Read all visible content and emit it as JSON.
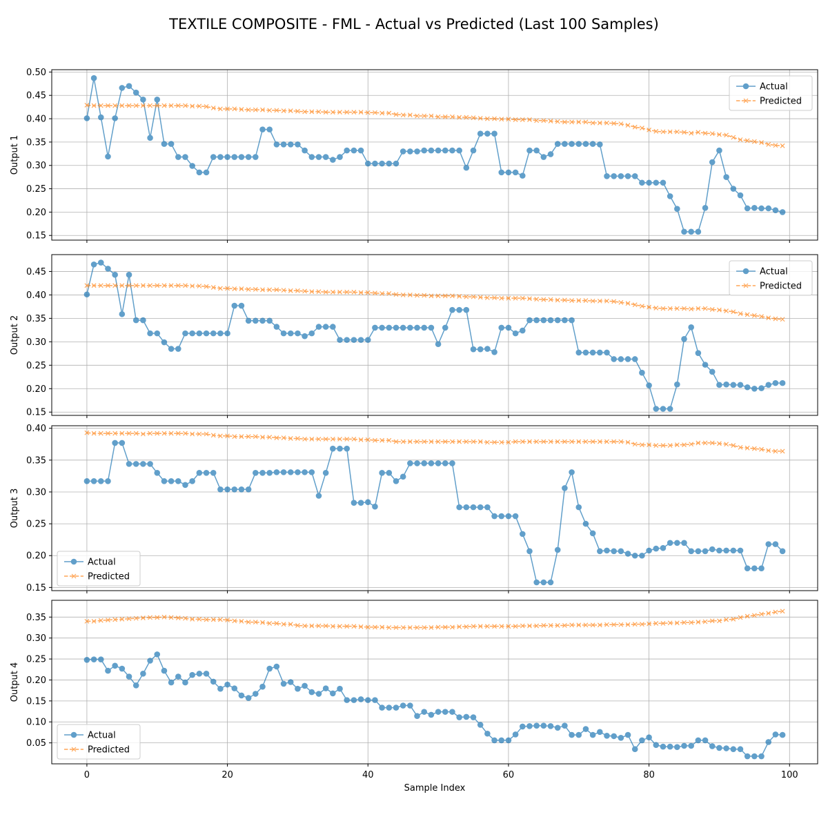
{
  "chart_data": {
    "type": "line",
    "title": "TEXTILE COMPOSITE - FML - Actual vs Predicted (Last 100 Samples)",
    "xlabel": "Sample Index",
    "x_ticks": [
      0,
      20,
      40,
      60,
      80,
      100
    ],
    "xlim": [
      -5,
      104
    ],
    "grid": true,
    "colors": {
      "actual": "#1f77b4",
      "predicted": "#ff7f0e"
    },
    "panels": [
      {
        "ylabel": "Output 1",
        "ylim": [
          0.14,
          0.505
        ],
        "y_ticks": [
          0.15,
          0.2,
          0.25,
          0.3,
          0.35,
          0.4,
          0.45,
          0.5
        ],
        "y_tick_labels": [
          "0.15",
          "0.20",
          "0.25",
          "0.30",
          "0.35",
          "0.40",
          "0.45",
          "0.50"
        ],
        "legend": "upper right",
        "series": [
          {
            "name": "Actual",
            "marker": "o",
            "values": [
              0.401,
              0.487,
              0.403,
              0.319,
              0.401,
              0.466,
              0.47,
              0.456,
              0.441,
              0.359,
              0.441,
              0.346,
              0.346,
              0.318,
              0.318,
              0.299,
              0.285,
              0.285,
              0.318,
              0.318,
              0.318,
              0.318,
              0.318,
              0.318,
              0.318,
              0.377,
              0.377,
              0.345,
              0.345,
              0.345,
              0.345,
              0.332,
              0.318,
              0.318,
              0.318,
              0.312,
              0.318,
              0.332,
              0.332,
              0.332,
              0.304,
              0.304,
              0.304,
              0.304,
              0.304,
              0.33,
              0.33,
              0.33,
              0.332,
              0.332,
              0.332,
              0.332,
              0.332,
              0.332,
              0.295,
              0.332,
              0.368,
              0.368,
              0.368,
              0.285,
              0.285,
              0.285,
              0.278,
              0.332,
              0.332,
              0.318,
              0.324,
              0.346,
              0.346,
              0.346,
              0.346,
              0.346,
              0.346,
              0.345,
              0.277,
              0.277,
              0.277,
              0.277,
              0.277,
              0.263,
              0.263,
              0.263,
              0.263,
              0.234,
              0.207,
              0.158,
              0.158,
              0.158,
              0.209,
              0.307,
              0.332,
              0.275,
              0.25,
              0.236,
              0.208,
              0.209,
              0.208,
              0.208,
              0.204,
              0.2
            ]
          },
          {
            "name": "Predicted",
            "marker": "x",
            "values": [
              0.429,
              0.428,
              0.428,
              0.428,
              0.428,
              0.428,
              0.428,
              0.428,
              0.428,
              0.428,
              0.428,
              0.428,
              0.428,
              0.428,
              0.428,
              0.427,
              0.427,
              0.426,
              0.423,
              0.421,
              0.421,
              0.421,
              0.42,
              0.419,
              0.419,
              0.419,
              0.418,
              0.418,
              0.417,
              0.417,
              0.416,
              0.415,
              0.415,
              0.415,
              0.414,
              0.414,
              0.414,
              0.414,
              0.414,
              0.414,
              0.413,
              0.413,
              0.412,
              0.412,
              0.409,
              0.408,
              0.408,
              0.406,
              0.406,
              0.406,
              0.404,
              0.404,
              0.404,
              0.403,
              0.403,
              0.402,
              0.401,
              0.4,
              0.4,
              0.399,
              0.399,
              0.398,
              0.398,
              0.398,
              0.396,
              0.396,
              0.395,
              0.394,
              0.393,
              0.393,
              0.393,
              0.393,
              0.391,
              0.391,
              0.391,
              0.39,
              0.389,
              0.386,
              0.382,
              0.38,
              0.376,
              0.373,
              0.372,
              0.372,
              0.372,
              0.371,
              0.369,
              0.371,
              0.369,
              0.368,
              0.366,
              0.365,
              0.36,
              0.355,
              0.353,
              0.351,
              0.349,
              0.345,
              0.343,
              0.342
            ]
          }
        ]
      },
      {
        "ylabel": "Output 2",
        "ylim": [
          0.143,
          0.486
        ],
        "y_ticks": [
          0.15,
          0.2,
          0.25,
          0.3,
          0.35,
          0.4,
          0.45
        ],
        "y_tick_labels": [
          "0.15",
          "0.20",
          "0.25",
          "0.30",
          "0.35",
          "0.40",
          "0.45"
        ],
        "legend": "upper right",
        "series": [
          {
            "name": "Actual",
            "marker": "o",
            "values": [
              0.401,
              0.465,
              0.469,
              0.456,
              0.443,
              0.359,
              0.443,
              0.346,
              0.346,
              0.318,
              0.318,
              0.299,
              0.285,
              0.285,
              0.318,
              0.318,
              0.318,
              0.318,
              0.318,
              0.318,
              0.318,
              0.377,
              0.377,
              0.345,
              0.345,
              0.345,
              0.345,
              0.332,
              0.318,
              0.318,
              0.318,
              0.312,
              0.318,
              0.332,
              0.332,
              0.332,
              0.304,
              0.304,
              0.304,
              0.304,
              0.304,
              0.33,
              0.33,
              0.33,
              0.33,
              0.33,
              0.33,
              0.33,
              0.33,
              0.33,
              0.295,
              0.33,
              0.368,
              0.368,
              0.368,
              0.284,
              0.284,
              0.285,
              0.278,
              0.33,
              0.33,
              0.318,
              0.324,
              0.346,
              0.346,
              0.346,
              0.346,
              0.346,
              0.346,
              0.346,
              0.277,
              0.277,
              0.277,
              0.277,
              0.277,
              0.263,
              0.263,
              0.263,
              0.263,
              0.234,
              0.207,
              0.157,
              0.157,
              0.157,
              0.209,
              0.306,
              0.331,
              0.276,
              0.251,
              0.236,
              0.208,
              0.209,
              0.208,
              0.208,
              0.203,
              0.2,
              0.201,
              0.208,
              0.212,
              0.212
            ]
          },
          {
            "name": "Predicted",
            "marker": "x",
            "values": [
              0.42,
              0.42,
              0.42,
              0.42,
              0.42,
              0.42,
              0.42,
              0.42,
              0.42,
              0.42,
              0.42,
              0.42,
              0.42,
              0.42,
              0.42,
              0.419,
              0.419,
              0.418,
              0.416,
              0.414,
              0.414,
              0.413,
              0.413,
              0.412,
              0.412,
              0.411,
              0.411,
              0.411,
              0.41,
              0.409,
              0.409,
              0.408,
              0.407,
              0.407,
              0.406,
              0.406,
              0.406,
              0.406,
              0.406,
              0.405,
              0.405,
              0.404,
              0.403,
              0.403,
              0.401,
              0.4,
              0.4,
              0.399,
              0.399,
              0.398,
              0.398,
              0.398,
              0.398,
              0.397,
              0.396,
              0.396,
              0.395,
              0.394,
              0.394,
              0.393,
              0.393,
              0.393,
              0.393,
              0.392,
              0.391,
              0.39,
              0.39,
              0.389,
              0.389,
              0.388,
              0.388,
              0.388,
              0.387,
              0.387,
              0.387,
              0.386,
              0.384,
              0.382,
              0.379,
              0.376,
              0.374,
              0.372,
              0.371,
              0.371,
              0.371,
              0.371,
              0.37,
              0.371,
              0.371,
              0.369,
              0.368,
              0.366,
              0.364,
              0.36,
              0.358,
              0.356,
              0.354,
              0.351,
              0.349,
              0.348
            ]
          }
        ]
      },
      {
        "ylabel": "Output 3",
        "ylim": [
          0.145,
          0.404
        ],
        "y_ticks": [
          0.15,
          0.2,
          0.25,
          0.3,
          0.35,
          0.4
        ],
        "y_tick_labels": [
          "0.15",
          "0.20",
          "0.25",
          "0.30",
          "0.35",
          "0.40"
        ],
        "legend": "lower left",
        "series": [
          {
            "name": "Actual",
            "marker": "o",
            "values": [
              0.317,
              0.317,
              0.317,
              0.317,
              0.377,
              0.377,
              0.344,
              0.344,
              0.344,
              0.344,
              0.33,
              0.317,
              0.317,
              0.317,
              0.311,
              0.317,
              0.33,
              0.33,
              0.33,
              0.304,
              0.304,
              0.304,
              0.304,
              0.304,
              0.33,
              0.33,
              0.33,
              0.331,
              0.331,
              0.331,
              0.331,
              0.331,
              0.331,
              0.294,
              0.33,
              0.368,
              0.368,
              0.368,
              0.283,
              0.283,
              0.284,
              0.277,
              0.33,
              0.33,
              0.317,
              0.324,
              0.345,
              0.345,
              0.345,
              0.345,
              0.345,
              0.345,
              0.345,
              0.276,
              0.276,
              0.276,
              0.276,
              0.276,
              0.262,
              0.262,
              0.262,
              0.262,
              0.234,
              0.207,
              0.158,
              0.158,
              0.158,
              0.209,
              0.306,
              0.331,
              0.276,
              0.25,
              0.235,
              0.207,
              0.208,
              0.207,
              0.207,
              0.203,
              0.2,
              0.2,
              0.208,
              0.211,
              0.212,
              0.22,
              0.22,
              0.22,
              0.207,
              0.207,
              0.207,
              0.21,
              0.208,
              0.208,
              0.208,
              0.208,
              0.18,
              0.18,
              0.18,
              0.218,
              0.218,
              0.207
            ]
          },
          {
            "name": "Predicted",
            "marker": "x",
            "values": [
              0.393,
              0.392,
              0.392,
              0.392,
              0.392,
              0.392,
              0.392,
              0.392,
              0.391,
              0.392,
              0.392,
              0.392,
              0.392,
              0.392,
              0.392,
              0.391,
              0.391,
              0.391,
              0.389,
              0.388,
              0.388,
              0.387,
              0.387,
              0.387,
              0.387,
              0.386,
              0.386,
              0.385,
              0.385,
              0.384,
              0.384,
              0.383,
              0.383,
              0.383,
              0.383,
              0.383,
              0.383,
              0.383,
              0.383,
              0.382,
              0.382,
              0.381,
              0.381,
              0.381,
              0.379,
              0.379,
              0.379,
              0.379,
              0.379,
              0.379,
              0.379,
              0.379,
              0.379,
              0.379,
              0.379,
              0.379,
              0.379,
              0.378,
              0.378,
              0.378,
              0.378,
              0.379,
              0.379,
              0.379,
              0.379,
              0.379,
              0.379,
              0.379,
              0.379,
              0.379,
              0.379,
              0.379,
              0.379,
              0.379,
              0.379,
              0.379,
              0.379,
              0.378,
              0.375,
              0.374,
              0.374,
              0.373,
              0.373,
              0.373,
              0.374,
              0.374,
              0.375,
              0.377,
              0.377,
              0.377,
              0.376,
              0.375,
              0.373,
              0.37,
              0.369,
              0.368,
              0.367,
              0.365,
              0.364,
              0.364
            ]
          }
        ]
      },
      {
        "ylabel": "Output 4",
        "ylim": [
          0.0,
          0.39
        ],
        "y_ticks": [
          0.05,
          0.1,
          0.15,
          0.2,
          0.25,
          0.3,
          0.35
        ],
        "y_tick_labels": [
          "0.05",
          "0.10",
          "0.15",
          "0.20",
          "0.25",
          "0.30",
          "0.35"
        ],
        "legend": "lower left",
        "series": [
          {
            "name": "Actual",
            "marker": "o",
            "values": [
              0.248,
              0.249,
              0.249,
              0.222,
              0.234,
              0.227,
              0.208,
              0.187,
              0.215,
              0.246,
              0.261,
              0.222,
              0.194,
              0.208,
              0.194,
              0.212,
              0.215,
              0.215,
              0.196,
              0.179,
              0.189,
              0.18,
              0.163,
              0.157,
              0.167,
              0.184,
              0.227,
              0.232,
              0.191,
              0.195,
              0.179,
              0.186,
              0.171,
              0.167,
              0.18,
              0.168,
              0.179,
              0.152,
              0.152,
              0.154,
              0.152,
              0.152,
              0.134,
              0.134,
              0.134,
              0.139,
              0.139,
              0.114,
              0.124,
              0.117,
              0.124,
              0.124,
              0.124,
              0.111,
              0.112,
              0.111,
              0.093,
              0.072,
              0.056,
              0.056,
              0.056,
              0.07,
              0.089,
              0.09,
              0.091,
              0.091,
              0.09,
              0.086,
              0.091,
              0.069,
              0.069,
              0.083,
              0.069,
              0.076,
              0.067,
              0.066,
              0.062,
              0.069,
              0.035,
              0.056,
              0.063,
              0.045,
              0.041,
              0.041,
              0.04,
              0.043,
              0.043,
              0.056,
              0.056,
              0.042,
              0.038,
              0.037,
              0.035,
              0.035,
              0.018,
              0.018,
              0.018,
              0.052,
              0.07,
              0.069
            ]
          },
          {
            "name": "Predicted",
            "marker": "x",
            "values": [
              0.34,
              0.34,
              0.342,
              0.343,
              0.344,
              0.345,
              0.346,
              0.347,
              0.348,
              0.349,
              0.349,
              0.35,
              0.349,
              0.348,
              0.347,
              0.345,
              0.345,
              0.344,
              0.344,
              0.344,
              0.343,
              0.341,
              0.34,
              0.338,
              0.338,
              0.337,
              0.335,
              0.335,
              0.333,
              0.333,
              0.33,
              0.329,
              0.329,
              0.329,
              0.329,
              0.328,
              0.328,
              0.328,
              0.328,
              0.327,
              0.326,
              0.326,
              0.326,
              0.325,
              0.325,
              0.325,
              0.325,
              0.325,
              0.325,
              0.325,
              0.326,
              0.326,
              0.326,
              0.327,
              0.327,
              0.328,
              0.328,
              0.328,
              0.328,
              0.328,
              0.328,
              0.328,
              0.329,
              0.329,
              0.329,
              0.33,
              0.33,
              0.33,
              0.33,
              0.331,
              0.331,
              0.331,
              0.331,
              0.331,
              0.332,
              0.332,
              0.332,
              0.332,
              0.333,
              0.333,
              0.334,
              0.335,
              0.335,
              0.336,
              0.336,
              0.337,
              0.337,
              0.338,
              0.339,
              0.341,
              0.341,
              0.344,
              0.345,
              0.349,
              0.352,
              0.354,
              0.357,
              0.359,
              0.362,
              0.364
            ]
          }
        ]
      }
    ]
  }
}
